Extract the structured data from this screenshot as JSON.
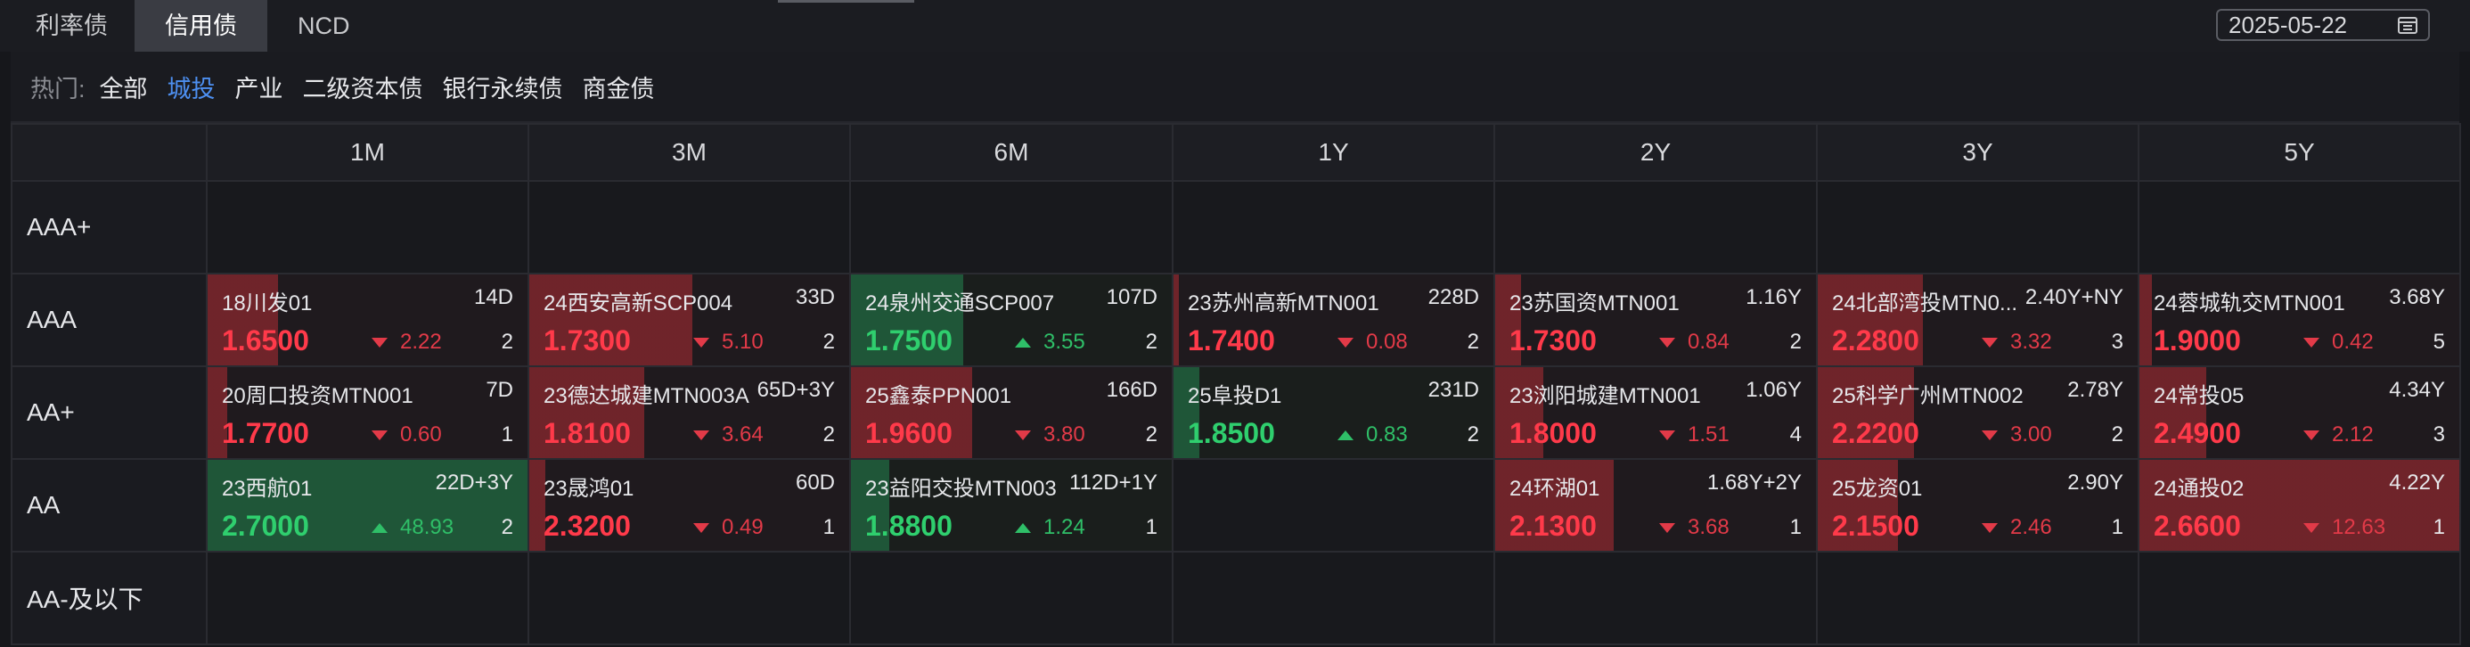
{
  "tabs": [
    {
      "label": "利率债",
      "active": false
    },
    {
      "label": "信用债",
      "active": true
    },
    {
      "label": "NCD",
      "active": false
    }
  ],
  "date": "2025-05-22",
  "filter": {
    "hot_label": "热门:",
    "items": [
      {
        "label": "全部",
        "active": false
      },
      {
        "label": "城投",
        "active": true
      },
      {
        "label": "产业",
        "active": false
      },
      {
        "label": "二级资本债",
        "active": false
      },
      {
        "label": "银行永续债",
        "active": false
      },
      {
        "label": "商金债",
        "active": false
      }
    ]
  },
  "columns": [
    "1M",
    "3M",
    "6M",
    "1Y",
    "2Y",
    "3Y",
    "5Y"
  ],
  "rows": [
    {
      "label": "AAA+",
      "cells": [
        null,
        null,
        null,
        null,
        null,
        null,
        null
      ]
    },
    {
      "label": "AAA",
      "cells": [
        {
          "name": "18川发01",
          "term": "14D",
          "rate": "1.6500",
          "change": "2.22",
          "dir": "down",
          "count": "2",
          "bar": 0.22
        },
        {
          "name": "24西安高新SCP004",
          "term": "33D",
          "rate": "1.7300",
          "change": "5.10",
          "dir": "down",
          "count": "2",
          "bar": 0.51
        },
        {
          "name": "24泉州交通SCP007",
          "term": "107D",
          "rate": "1.7500",
          "change": "3.55",
          "dir": "up",
          "count": "2",
          "bar": 0.35
        },
        {
          "name": "23苏州高新MTN001",
          "term": "228D",
          "rate": "1.7400",
          "change": "0.08",
          "dir": "down",
          "count": "2",
          "bar": 0.01
        },
        {
          "name": "23苏国资MTN001",
          "term": "1.16Y",
          "rate": "1.7300",
          "change": "0.84",
          "dir": "down",
          "count": "2",
          "bar": 0.08
        },
        {
          "name": "24北部湾投MTN0...",
          "term": "2.40Y+NY",
          "rate": "2.2800",
          "change": "3.32",
          "dir": "down",
          "count": "3",
          "bar": 0.33
        },
        {
          "name": "24蓉城轨交MTN001",
          "term": "3.68Y",
          "rate": "1.9000",
          "change": "0.42",
          "dir": "down",
          "count": "5",
          "bar": 0.04
        }
      ]
    },
    {
      "label": "AA+",
      "cells": [
        {
          "name": "20周口投资MTN001",
          "term": "7D",
          "rate": "1.7700",
          "change": "0.60",
          "dir": "down",
          "count": "1",
          "bar": 0.06
        },
        {
          "name": "23德达城建MTN003A",
          "term": "65D+3Y",
          "rate": "1.8100",
          "change": "3.64",
          "dir": "down",
          "count": "2",
          "bar": 0.36
        },
        {
          "name": "25鑫泰PPN001",
          "term": "166D",
          "rate": "1.9600",
          "change": "3.80",
          "dir": "down",
          "count": "2",
          "bar": 0.38
        },
        {
          "name": "25阜投D1",
          "term": "231D",
          "rate": "1.8500",
          "change": "0.83",
          "dir": "up",
          "count": "2",
          "bar": 0.08
        },
        {
          "name": "23浏阳城建MTN001",
          "term": "1.06Y",
          "rate": "1.8000",
          "change": "1.51",
          "dir": "down",
          "count": "4",
          "bar": 0.15
        },
        {
          "name": "25科学广州MTN002",
          "term": "2.78Y",
          "rate": "2.2200",
          "change": "3.00",
          "dir": "down",
          "count": "2",
          "bar": 0.3
        },
        {
          "name": "24常投05",
          "term": "4.34Y",
          "rate": "2.4900",
          "change": "2.12",
          "dir": "down",
          "count": "3",
          "bar": 0.21
        }
      ]
    },
    {
      "label": "AA",
      "cells": [
        {
          "name": "23西航01",
          "term": "22D+3Y",
          "rate": "2.7000",
          "change": "48.93",
          "dir": "up",
          "count": "2",
          "bar": 1.0
        },
        {
          "name": "23晟鸿01",
          "term": "60D",
          "rate": "2.3200",
          "change": "0.49",
          "dir": "down",
          "count": "1",
          "bar": 0.05
        },
        {
          "name": "23益阳交投MTN003",
          "term": "112D+1Y",
          "rate": "1.8800",
          "change": "1.24",
          "dir": "up",
          "count": "1",
          "bar": 0.12
        },
        null,
        {
          "name": "24环湖01",
          "term": "1.68Y+2Y",
          "rate": "2.1300",
          "change": "3.68",
          "dir": "down",
          "count": "1",
          "bar": 0.37
        },
        {
          "name": "25龙资01",
          "term": "2.90Y",
          "rate": "2.1500",
          "change": "2.46",
          "dir": "down",
          "count": "1",
          "bar": 0.25
        },
        {
          "name": "24通投02",
          "term": "4.22Y",
          "rate": "2.6600",
          "change": "12.63",
          "dir": "down",
          "count": "1",
          "bar": 1.0
        }
      ]
    },
    {
      "label": "AA-及以下",
      "cells": [
        null,
        null,
        null,
        null,
        null,
        null,
        null
      ]
    }
  ],
  "colors": {
    "up": "#2fcf6e",
    "down": "#ff3a4a",
    "accent": "#4d8ff0"
  }
}
